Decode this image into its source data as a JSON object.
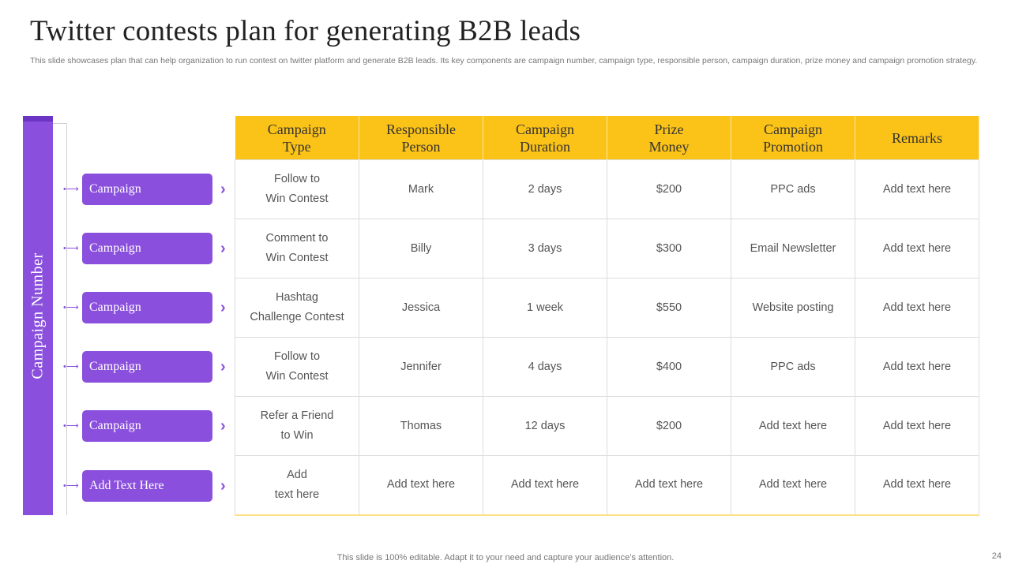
{
  "slide": {
    "title": "Twitter contests plan for generating B2B leads",
    "subtitle": "This slide showcases plan that can help organization to run contest on twitter platform and generate B2B leads. Its key components are campaign number, campaign type, responsible person, campaign duration, prize money and campaign promotion strategy.",
    "side_label": "Campaign Number",
    "footer": "This slide is 100% editable. Adapt it to your need and capture your audience’s attention.",
    "page_number": "24"
  },
  "colors": {
    "accent_purple": "#8a4fdc",
    "header_yellow": "#fbc217"
  },
  "icons": {
    "row_connector": "double-dot-arrow-icon",
    "row_pointer": "chevron-right-icon"
  },
  "campaigns": [
    "Campaign",
    "Campaign",
    "Campaign",
    "Campaign",
    "Campaign",
    "Add Text Here"
  ],
  "table": {
    "headers": [
      [
        "Campaign",
        "Type"
      ],
      [
        "Responsible",
        "Person"
      ],
      [
        "Campaign",
        "Duration"
      ],
      [
        "Prize",
        "Money"
      ],
      [
        "Campaign",
        "Promotion"
      ],
      [
        "Remarks"
      ]
    ],
    "rows": [
      [
        [
          "Follow to",
          "Win Contest"
        ],
        [
          "Mark"
        ],
        [
          "2 days"
        ],
        [
          "$200"
        ],
        [
          "PPC ads"
        ],
        [
          "Add text here"
        ]
      ],
      [
        [
          "Comment to",
          "Win Contest"
        ],
        [
          "Billy"
        ],
        [
          "3 days"
        ],
        [
          "$300"
        ],
        [
          "Email Newsletter"
        ],
        [
          "Add text here"
        ]
      ],
      [
        [
          "Hashtag",
          "Challenge Contest"
        ],
        [
          "Jessica"
        ],
        [
          "1 week"
        ],
        [
          "$550"
        ],
        [
          "Website posting"
        ],
        [
          "Add text here"
        ]
      ],
      [
        [
          "Follow to",
          "Win Contest"
        ],
        [
          "Jennifer"
        ],
        [
          "4 days"
        ],
        [
          "$400"
        ],
        [
          "PPC ads"
        ],
        [
          "Add text here"
        ]
      ],
      [
        [
          "Refer a Friend",
          "to Win"
        ],
        [
          "Thomas"
        ],
        [
          "12 days"
        ],
        [
          "$200"
        ],
        [
          "Add text here"
        ],
        [
          "Add text here"
        ]
      ],
      [
        [
          "Add",
          "text here"
        ],
        [
          "Add text here"
        ],
        [
          "Add text here"
        ],
        [
          "Add text here"
        ],
        [
          "Add text here"
        ],
        [
          "Add text here"
        ]
      ]
    ]
  }
}
